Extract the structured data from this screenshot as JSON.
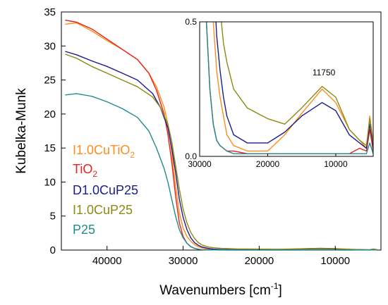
{
  "chart_data": [
    {
      "type": "line",
      "xlabel": "Wavenumbers [cm",
      "xlabel_sup": "-1",
      "xlabel_end": "]",
      "ylabel": "Kubelka-Munk",
      "xlim": [
        46000,
        4000
      ],
      "ylim": [
        0,
        35
      ],
      "x_ticks": [
        40000,
        30000,
        20000,
        10000
      ],
      "x_tick_labels": [
        "40000",
        "30000",
        "20000",
        "10000"
      ],
      "y_ticks": [
        0,
        5,
        10,
        15,
        20,
        25,
        30,
        35
      ],
      "y_tick_labels": [
        "0",
        "5",
        "10",
        "15",
        "20",
        "25",
        "30",
        "35"
      ],
      "grid": false,
      "legend_placement": "lower-left",
      "series": [
        {
          "name": "I1.0CuTiO",
          "name_sub": "2",
          "color": "#ff8c1a",
          "x": [
            45500,
            44000,
            42000,
            40000,
            38000,
            36000,
            34500,
            33500,
            32500,
            32000,
            31500,
            31000,
            30500,
            30000,
            29500,
            29000,
            28500,
            28000,
            27500,
            27000,
            26500,
            26000,
            25000,
            23000,
            20000,
            17500,
            15000,
            12000,
            10000,
            8000,
            6500,
            5500,
            5000,
            4500
          ],
          "y": [
            33.2,
            33.4,
            32.2,
            30.8,
            29.5,
            28.0,
            26.0,
            24.0,
            21.0,
            18.5,
            14.5,
            9.5,
            5.5,
            3.2,
            2.0,
            1.3,
            0.8,
            0.5,
            0.32,
            0.22,
            0.15,
            0.08,
            0.04,
            0.02,
            0.02,
            0.08,
            0.16,
            0.25,
            0.2,
            0.1,
            0.06,
            0.03,
            0.15,
            0.05
          ]
        },
        {
          "name": "TiO",
          "name_sub": "2",
          "color": "#e8201c",
          "x": [
            45500,
            44000,
            42000,
            40000,
            38000,
            36000,
            34500,
            33500,
            32500,
            32000,
            31500,
            31000,
            30500,
            30000,
            29500,
            29000,
            28500,
            28000,
            27500,
            27000,
            26500,
            26000,
            25000,
            23000,
            20000,
            17500,
            15000,
            12000,
            10000,
            8000,
            6500,
            5500,
            5000,
            4500
          ],
          "y": [
            33.8,
            33.5,
            32.5,
            31.0,
            29.5,
            28.0,
            26.0,
            23.5,
            20.0,
            17.0,
            13.0,
            8.0,
            4.0,
            2.0,
            1.0,
            0.5,
            0.25,
            0.12,
            0.06,
            0.04,
            0.03,
            0.02,
            0.02,
            0.01,
            0.01,
            0.01,
            0.01,
            0.01,
            0.01,
            0.01,
            0.03,
            0.02,
            0.1,
            0.02
          ]
        },
        {
          "name": "D1.0CuP25",
          "color": "#1c1c8c",
          "x": [
            45500,
            44000,
            42000,
            40000,
            38000,
            36000,
            34000,
            33000,
            32000,
            31500,
            31000,
            30500,
            30000,
            29500,
            29000,
            28500,
            28000,
            27500,
            27000,
            26500,
            26000,
            25000,
            23000,
            20000,
            17500,
            15000,
            12000,
            10000,
            8000,
            6500,
            5500,
            5000,
            4500
          ],
          "y": [
            29.2,
            28.7,
            27.8,
            27.0,
            26.0,
            25.0,
            23.0,
            21.0,
            18.0,
            15.0,
            11.5,
            7.5,
            4.8,
            3.0,
            1.8,
            1.1,
            0.7,
            0.45,
            0.32,
            0.22,
            0.15,
            0.08,
            0.05,
            0.05,
            0.09,
            0.15,
            0.2,
            0.17,
            0.08,
            0.05,
            0.03,
            0.12,
            0.04
          ]
        },
        {
          "name": "I1.0CuP25",
          "color": "#8a8a14",
          "x": [
            45500,
            44000,
            42000,
            40000,
            38000,
            36000,
            34000,
            33000,
            32000,
            31500,
            31000,
            30500,
            30000,
            29500,
            29000,
            28500,
            28000,
            27500,
            27000,
            26500,
            26000,
            25000,
            23000,
            20000,
            17500,
            15000,
            12000,
            10000,
            8000,
            6500,
            5500,
            5000,
            4500
          ],
          "y": [
            28.8,
            28.2,
            27.0,
            26.0,
            25.0,
            24.0,
            22.5,
            21.0,
            18.5,
            16.0,
            12.5,
            9.0,
            6.0,
            4.0,
            2.6,
            1.7,
            1.1,
            0.75,
            0.55,
            0.42,
            0.35,
            0.25,
            0.18,
            0.14,
            0.12,
            0.18,
            0.26,
            0.22,
            0.1,
            0.06,
            0.04,
            0.14,
            0.05
          ]
        },
        {
          "name": "P25",
          "color": "#1f8c8c",
          "x": [
            45500,
            44000,
            42000,
            40000,
            38000,
            36000,
            34500,
            33500,
            32500,
            32000,
            31500,
            31000,
            30500,
            30000,
            29500,
            29000,
            28500,
            28000,
            27500,
            27000,
            26500,
            26000,
            25000,
            23000,
            20000,
            17500,
            15000,
            12000,
            10000,
            8000,
            6500,
            5500,
            5000,
            4500
          ],
          "y": [
            22.8,
            23.0,
            22.6,
            21.8,
            20.8,
            19.5,
            17.5,
            15.0,
            12.0,
            10.0,
            7.5,
            5.0,
            3.0,
            1.8,
            1.0,
            0.5,
            0.25,
            0.12,
            0.06,
            0.04,
            0.03,
            0.02,
            0.01,
            0.01,
            0.01,
            0.01,
            0.01,
            0.01,
            0.01,
            0.01,
            0.01,
            0.01,
            0.05,
            0.01
          ]
        }
      ]
    },
    {
      "type": "line",
      "inset": true,
      "xlim": [
        30000,
        4500
      ],
      "ylim": [
        0,
        0.5
      ],
      "x_ticks": [
        30000,
        20000,
        10000
      ],
      "x_tick_labels": [
        "30000",
        "20000",
        "10000"
      ],
      "y_ticks": [
        0,
        0.5
      ],
      "y_tick_labels": [
        "0.0",
        "0.5"
      ],
      "annotation": {
        "text": "11750",
        "x": 11750,
        "y": 0.285
      }
    }
  ]
}
